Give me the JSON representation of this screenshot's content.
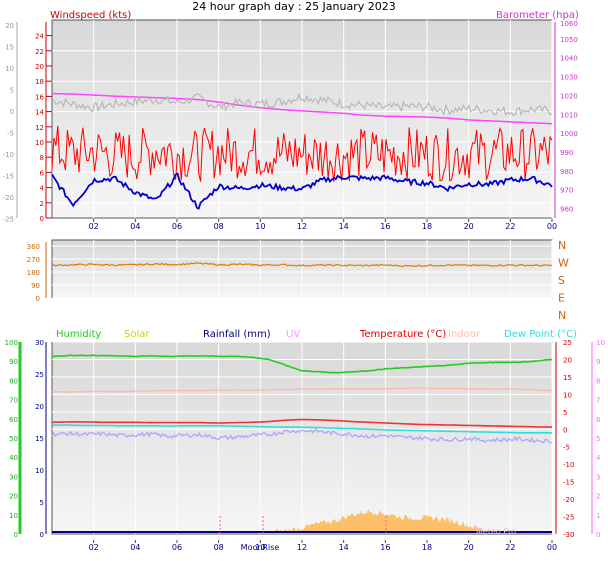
{
  "title": "24 hour graph day : 25 January 2023",
  "colors": {
    "wind": "#ff0000",
    "gust_fill": "#ff2a2a",
    "avg_wind": "#0000cc",
    "baro": "#ff44ff",
    "temp_grey": "#b8b8b8",
    "dir": "#e07a00",
    "humidity": "#22cc22",
    "solar": "#cccc22",
    "rainfall": "#000080",
    "uv": "#ff99ff",
    "temperature": "#dd0000",
    "indoor": "#ffbba8",
    "dewpoint": "#33dddd",
    "temp_line": "#ee3333",
    "dew_line": "#aaaaff",
    "solar_fill": "#ffb347"
  },
  "x_ticks": [
    "02",
    "04",
    "06",
    "08",
    "10",
    "12",
    "14",
    "16",
    "18",
    "20",
    "22",
    "00"
  ],
  "moonrise_label": "MoonRise",
  "watermark": "Meteo Pro",
  "chart_data": [
    {
      "type": "line",
      "panel": "wind",
      "title": "24 hour graph day : 25 January 2023",
      "left_label": "Windspeed (kts)",
      "right_label": "Barometer (hpa)",
      "left_ticks": [
        "0",
        "2",
        "4",
        "6",
        "8",
        "10",
        "12",
        "14",
        "16",
        "18",
        "20",
        "22",
        "24"
      ],
      "outer_left_ticks": [
        "20",
        "15",
        "10",
        "5",
        "0",
        "-5",
        "-10",
        "-15",
        "-20",
        "-25"
      ],
      "right_ticks": [
        "960",
        "970",
        "980",
        "990",
        "1000",
        "1010",
        "1020",
        "1030",
        "1040",
        "1050"
      ],
      "right_extra_tick": "1060",
      "ylim_wind": [
        0,
        25
      ],
      "ylim_baro": [
        955,
        1060
      ],
      "series": [
        {
          "name": "Barometer (hpa)",
          "values": [
            1021,
            1020.7,
            1020.2,
            1019.6,
            1019.2,
            1018.8,
            1018.4,
            1017.8,
            1016.5,
            1014.8,
            1013.5,
            1012.5,
            1011.8,
            1011.2,
            1010.5,
            1009.5,
            1009,
            1008.8,
            1008.5,
            1008,
            1007,
            1006.5,
            1006,
            1005.5,
            1005
          ]
        },
        {
          "values": [
            15.5,
            15,
            14.5,
            15,
            15.3,
            15.6,
            15.2,
            15.8,
            14.6,
            15.2,
            15,
            15.3,
            16,
            15.5,
            15,
            14.8,
            14.5,
            14.7,
            14.6,
            14.2,
            14.4,
            14.2,
            14,
            14.3,
            14.1
          ]
        },
        {
          "values": [
            9,
            8.5,
            8.8,
            8.3,
            8.2,
            9,
            8.5,
            8.2,
            8.7,
            8.6,
            8.7,
            8.4,
            8.5,
            8.3,
            8.2,
            8.5,
            8.3,
            8.6,
            8.4,
            8.3,
            8.5,
            8.4,
            8.6,
            8.4,
            8.5
          ]
        },
        {
          "values": [
            5.5,
            1.8,
            5,
            5.2,
            3.4,
            2.3,
            5.6,
            1.4,
            4.2,
            3.9,
            4.3,
            4,
            3.8,
            5,
            5.4,
            5.2,
            5.3,
            4.8,
            4.6,
            3.9,
            4.5,
            4.4,
            5,
            5.2,
            4.3
          ]
        }
      ]
    },
    {
      "type": "line",
      "panel": "direction",
      "right_letters": [
        "N",
        "W",
        "S",
        "E",
        "N"
      ],
      "left_ticks": [
        "360",
        "270",
        "180",
        "90",
        "0"
      ],
      "ylim": [
        0,
        360
      ],
      "series": [
        {
          "values": [
            225,
            230,
            232,
            228,
            230,
            235,
            232,
            240,
            230,
            233,
            228,
            230,
            225,
            228,
            226,
            225,
            228,
            222,
            225,
            228,
            226,
            225,
            228,
            226,
            225
          ]
        }
      ]
    },
    {
      "type": "line",
      "panel": "temperature",
      "legend": [
        "Humidity",
        "Solar",
        "Rainfall (mm)",
        "UV",
        "Temperature (°C)",
        "Indoor",
        "Dew Point (°C)"
      ],
      "hum_ticks": [
        "0",
        "10",
        "20",
        "30",
        "40",
        "50",
        "60",
        "70",
        "80",
        "90",
        "100"
      ],
      "rain_ticks": [
        "0",
        "5",
        "10",
        "15",
        "20",
        "25",
        "30"
      ],
      "temp_ticks": [
        "-30",
        "-25",
        "-20",
        "-15",
        "-10",
        "-5",
        "0",
        "5",
        "10",
        "15",
        "20",
        "25"
      ],
      "uv_ticks": [
        "0",
        "1",
        "2",
        "3",
        "4",
        "5",
        "6",
        "7",
        "8",
        "9",
        "10"
      ],
      "ylim_humidity": [
        0,
        100
      ],
      "ylim_temp": [
        -30,
        25
      ],
      "series": [
        {
          "name": "Humidity",
          "values": [
            92.5,
            93,
            93,
            93,
            92.8,
            92.5,
            92.8,
            92.5,
            92.7,
            92.8,
            92.5,
            92.6,
            92,
            91,
            88,
            85,
            84.5,
            84,
            84.5,
            85,
            86,
            86.5,
            87,
            87.5,
            88,
            89,
            89.2,
            89.5,
            89.5,
            90,
            91
          ]
        },
        {
          "name": "Indoor",
          "values": [
            10.8,
            10.7,
            10.8,
            10.9,
            10.8,
            10.9,
            11,
            11.1,
            11.1,
            11.1,
            11.2,
            11.3,
            11.2,
            11.3,
            11.4,
            11.5,
            11.5,
            11.6,
            11.6,
            11.6,
            11.6,
            11.7,
            11.8,
            11.7,
            11.7,
            11.6,
            11.6,
            11.5,
            11.5,
            11.3,
            11.1
          ]
        },
        {
          "name": "Temperature (°C)",
          "values": [
            2,
            2.1,
            2.1,
            2,
            2,
            2,
            1.9,
            1.9,
            1.9,
            1.9,
            1.8,
            1.9,
            2,
            2.2,
            2.6,
            2.8,
            2.7,
            2.5,
            2.2,
            2,
            1.8,
            1.6,
            1.4,
            1.3,
            1.2,
            1.1,
            1,
            0.9,
            0.8,
            0.7,
            0.6
          ]
        },
        {
          "name": "Dew Point (°C)",
          "values": [
            1.2,
            1.2,
            1.1,
            1.1,
            1,
            1,
            1,
            0.9,
            1,
            1,
            1,
            0.9,
            0.8,
            0.7,
            0.6,
            0.6,
            0.5,
            0.3,
            0.2,
            0,
            -0.2,
            -0.3,
            -0.4,
            -0.5,
            -0.6,
            -0.7,
            -0.8,
            -0.9,
            -1,
            -1,
            -1
          ]
        },
        {
          "values": [
            -1.5,
            -1.2,
            -1.5,
            -1.3,
            -1.8,
            -1.6,
            -1.4,
            -2,
            -1.7,
            -1.6,
            -2.5,
            -2.3,
            -1.8,
            -1.5,
            -0.6,
            -0.4,
            -0.5,
            -1.2,
            -1.5,
            -2,
            -1.8,
            -2.3,
            -2.5,
            -2.8,
            -3,
            -2.6,
            -3.2,
            -3,
            -2.8,
            -3.2,
            -3.4
          ]
        },
        {
          "name": "Solar",
          "values": [
            0,
            0,
            0,
            0,
            0,
            0,
            0,
            0,
            0,
            0,
            0,
            0,
            0,
            0.5,
            1,
            1.8,
            3,
            3.8,
            5.5,
            6.5,
            5.8,
            4.8,
            4.6,
            4.6,
            3.8,
            2.4,
            1,
            0.3,
            0,
            0,
            0
          ]
        }
      ]
    }
  ]
}
